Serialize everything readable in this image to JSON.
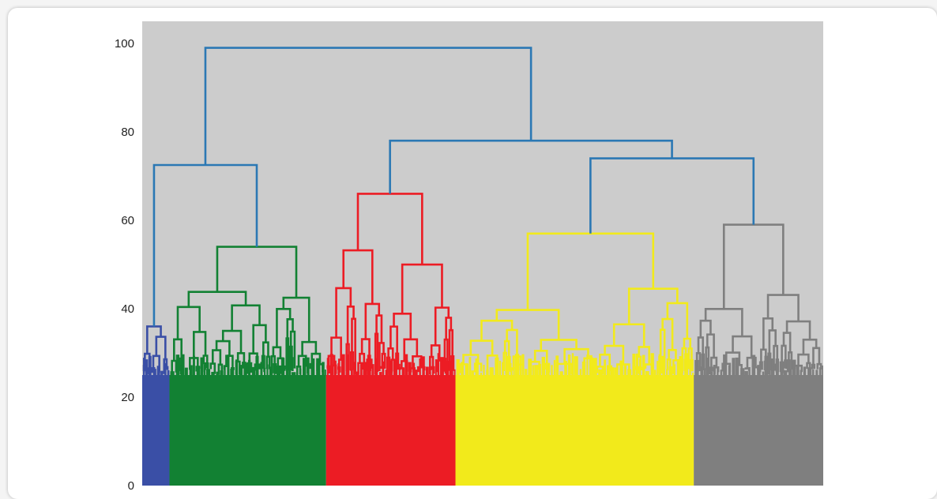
{
  "chart_data": {
    "type": "dendrogram",
    "title": "",
    "xlabel": "",
    "ylabel": "",
    "ylim": [
      0,
      105
    ],
    "yticks": [
      0,
      20,
      40,
      60,
      80,
      100
    ],
    "grid": false,
    "legend": "none",
    "background_color": "#cccccc",
    "link_color_above_threshold": "#2b78b4",
    "clusters": [
      {
        "color": "#3a4fa6",
        "leaf_share": 0.04,
        "base_height": 25,
        "top_merge": 36
      },
      {
        "color": "#128133",
        "leaf_share": 0.23,
        "base_height": 25,
        "top_merge": 54
      },
      {
        "color": "#ec1c24",
        "leaf_share": 0.19,
        "base_height": 25,
        "top_merge": 66
      },
      {
        "color": "#f2ea1b",
        "leaf_share": 0.35,
        "base_height": 25,
        "top_merge": 57
      },
      {
        "color": "#7f7f7f",
        "leaf_share": 0.19,
        "base_height": 25,
        "top_merge": 59
      }
    ],
    "merges": [
      {
        "left": "cluster-0",
        "right": "cluster-1",
        "height": 72.5
      },
      {
        "left": "cluster-3",
        "right": "cluster-4",
        "height": 74
      },
      {
        "left": "cluster-2",
        "right": "merge-2",
        "height": 78
      },
      {
        "left": "merge-1",
        "right": "merge-3",
        "height": 99
      }
    ]
  }
}
